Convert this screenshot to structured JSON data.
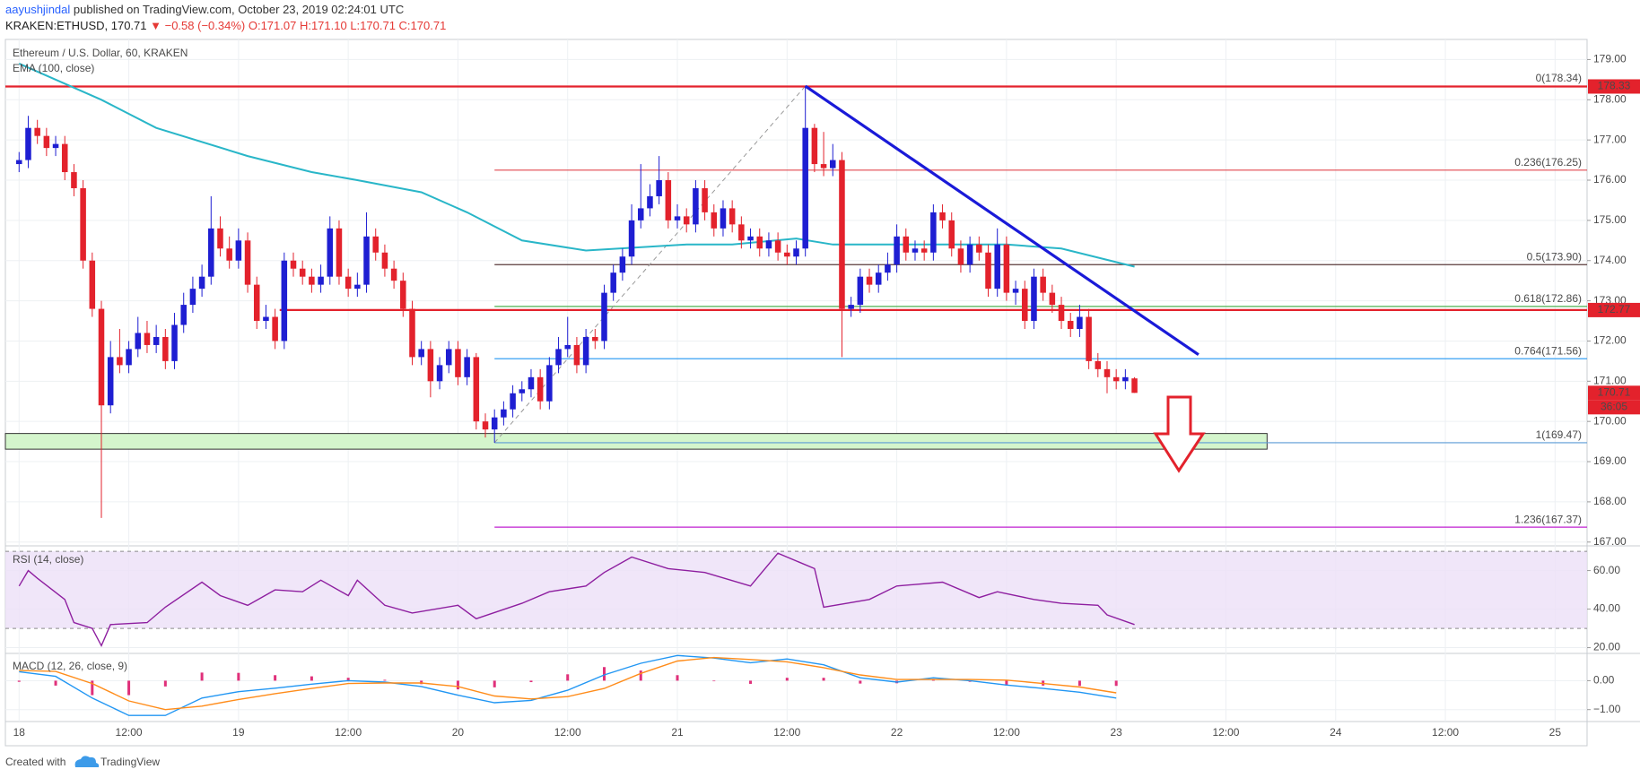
{
  "header": {
    "author": "aayushjindal",
    "published": " published on TradingView.com, October 23, 2019 02:24:01 UTC",
    "symbol": "KRAKEN:ETHUSD, 170.71",
    "change": " ▼ −0.58 (−0.34%)",
    "ohlc": " O:171.07 H:171.10 L:170.71 C:170.71"
  },
  "footer": {
    "prefix": "Created with",
    "brand": "TradingView"
  },
  "chart_data": [
    {
      "type": "candlestick",
      "title": "Ethereum / U.S. Dollar, 60, KRAKEN",
      "up_color": "#1e1ed2",
      "down_color": "#e3222c",
      "grid": true,
      "xlim": [
        -1.5,
        171.5
      ],
      "xticks": [
        {
          "value": 0,
          "label": "18"
        },
        {
          "value": 12,
          "label": "12:00"
        },
        {
          "value": 24,
          "label": "19"
        },
        {
          "value": 36,
          "label": "12:00"
        },
        {
          "value": 48,
          "label": "20"
        },
        {
          "value": 60,
          "label": "12:00"
        },
        {
          "value": 72,
          "label": "21"
        },
        {
          "value": 84,
          "label": "12:00"
        },
        {
          "value": 96,
          "label": "22"
        },
        {
          "value": 108,
          "label": "12:00"
        },
        {
          "value": 120,
          "label": "23"
        },
        {
          "value": 132,
          "label": "12:00"
        },
        {
          "value": 144,
          "label": "24"
        },
        {
          "value": 156,
          "label": "12:00"
        },
        {
          "value": 168,
          "label": "25"
        }
      ],
      "ylim": [
        166.95,
        179.5
      ],
      "yticks": [
        {
          "value": 167,
          "label": "167.00"
        },
        {
          "value": 168,
          "label": "168.00"
        },
        {
          "value": 169,
          "label": "169.00"
        },
        {
          "value": 170,
          "label": "170.00"
        },
        {
          "value": 171,
          "label": "171.00"
        },
        {
          "value": 172,
          "label": "172.00"
        },
        {
          "value": 173,
          "label": "173.00"
        },
        {
          "value": 174,
          "label": "174.00"
        },
        {
          "value": 175,
          "label": "175.00"
        },
        {
          "value": 176,
          "label": "176.00"
        },
        {
          "value": 177,
          "label": "177.00"
        },
        {
          "value": 178,
          "label": "178.00"
        },
        {
          "value": 179,
          "label": "179.00"
        }
      ],
      "x": [
        0,
        1,
        2,
        3,
        4,
        5,
        6,
        7,
        8,
        9,
        10,
        11,
        12,
        13,
        14,
        15,
        16,
        17,
        18,
        19,
        20,
        21,
        22,
        23,
        24,
        25,
        26,
        27,
        28,
        29,
        30,
        31,
        32,
        33,
        34,
        35,
        36,
        37,
        38,
        39,
        40,
        41,
        42,
        43,
        44,
        45,
        46,
        47,
        48,
        49,
        50,
        51,
        52,
        53,
        54,
        55,
        56,
        57,
        58,
        59,
        60,
        61,
        62,
        63,
        64,
        65,
        66,
        67,
        68,
        69,
        70,
        71,
        72,
        73,
        74,
        75,
        76,
        77,
        78,
        79,
        80,
        81,
        82,
        83,
        84,
        85,
        86,
        87,
        88,
        89,
        90,
        91,
        92,
        93,
        94,
        95,
        96,
        97,
        98,
        99,
        100,
        101,
        102,
        103,
        104,
        105,
        106,
        107,
        108,
        109,
        110,
        111,
        112,
        113,
        114,
        115,
        116,
        117,
        118,
        119,
        120,
        121,
        122
      ],
      "open": [
        176.4,
        176.5,
        177.3,
        177.1,
        176.8,
        176.9,
        176.2,
        175.8,
        174.0,
        172.8,
        170.4,
        171.6,
        171.4,
        171.8,
        172.2,
        171.9,
        172.1,
        171.5,
        172.4,
        172.9,
        173.3,
        173.6,
        174.8,
        174.3,
        174.0,
        174.5,
        173.4,
        172.5,
        172.6,
        172.0,
        174.0,
        173.8,
        173.6,
        173.4,
        173.6,
        174.8,
        173.6,
        173.3,
        173.4,
        174.6,
        174.2,
        173.8,
        173.5,
        172.8,
        171.6,
        171.8,
        171.0,
        171.4,
        171.8,
        171.1,
        171.6,
        170.0,
        169.8,
        170.1,
        170.3,
        170.7,
        170.8,
        171.1,
        170.5,
        171.4,
        171.8,
        171.9,
        171.4,
        172.1,
        172.0,
        173.2,
        173.7,
        174.1,
        175.0,
        175.3,
        175.6,
        176.0,
        175.0,
        175.1,
        174.9,
        175.8,
        175.2,
        174.8,
        175.3,
        174.9,
        174.5,
        174.6,
        174.3,
        174.5,
        174.2,
        174.1,
        174.3,
        177.3,
        176.4,
        176.3,
        176.5,
        172.8,
        172.9,
        173.6,
        173.4,
        173.7,
        173.9,
        174.6,
        174.2,
        174.3,
        174.2,
        175.2,
        175.0,
        174.3,
        173.9,
        174.4,
        174.2,
        173.3,
        174.4,
        173.2,
        173.3,
        172.5,
        173.6,
        173.2,
        172.9,
        172.5,
        172.3,
        172.6,
        171.5,
        171.3,
        171.1,
        171.0,
        171.07
      ],
      "high": [
        176.7,
        177.6,
        177.5,
        177.3,
        177.1,
        177.1,
        176.4,
        176.0,
        174.2,
        173.0,
        172.0,
        172.3,
        172.0,
        172.6,
        172.5,
        172.4,
        172.3,
        172.7,
        173.2,
        173.6,
        173.9,
        175.6,
        175.1,
        174.6,
        174.8,
        174.7,
        173.6,
        172.9,
        172.8,
        174.2,
        174.2,
        174.0,
        173.8,
        173.9,
        175.1,
        175.0,
        173.8,
        173.7,
        175.2,
        174.8,
        174.4,
        174.0,
        173.7,
        173.0,
        172.0,
        172.0,
        171.6,
        172.0,
        172.0,
        171.8,
        171.7,
        170.2,
        170.3,
        170.5,
        170.9,
        171.0,
        171.3,
        171.3,
        171.6,
        172.1,
        172.6,
        172.1,
        172.3,
        172.3,
        173.4,
        173.9,
        174.3,
        175.4,
        176.4,
        175.9,
        176.6,
        176.2,
        175.4,
        175.3,
        176.0,
        176.0,
        175.4,
        175.5,
        175.5,
        175.1,
        174.8,
        174.8,
        174.7,
        174.7,
        174.4,
        174.5,
        178.34,
        177.4,
        177.2,
        176.9,
        176.7,
        173.1,
        173.8,
        173.8,
        173.9,
        174.2,
        174.9,
        174.8,
        174.5,
        174.5,
        175.4,
        175.4,
        175.2,
        174.5,
        174.6,
        174.6,
        174.4,
        174.8,
        174.6,
        173.5,
        173.5,
        173.8,
        173.8,
        173.4,
        173.1,
        172.7,
        172.9,
        172.8,
        171.7,
        171.5,
        171.3,
        171.3,
        171.1
      ],
      "low": [
        176.2,
        176.3,
        176.9,
        176.6,
        176.6,
        176.0,
        175.6,
        173.8,
        172.6,
        167.6,
        170.2,
        171.2,
        171.2,
        171.6,
        171.7,
        171.7,
        171.3,
        171.3,
        172.2,
        172.7,
        173.1,
        173.4,
        174.1,
        173.8,
        173.8,
        173.2,
        172.3,
        172.3,
        171.8,
        171.8,
        173.6,
        173.4,
        173.2,
        173.2,
        173.4,
        173.4,
        173.1,
        173.1,
        173.2,
        174.0,
        173.6,
        173.3,
        172.6,
        171.4,
        171.4,
        170.6,
        170.8,
        171.2,
        170.9,
        170.9,
        169.8,
        169.6,
        169.47,
        169.9,
        170.1,
        170.5,
        170.6,
        170.3,
        170.3,
        171.2,
        171.6,
        171.2,
        171.2,
        171.8,
        171.8,
        173.0,
        173.5,
        173.9,
        174.8,
        175.1,
        175.4,
        174.8,
        174.8,
        174.7,
        174.7,
        175.0,
        174.6,
        174.6,
        174.7,
        174.3,
        174.3,
        174.1,
        174.1,
        174.0,
        173.9,
        173.9,
        174.1,
        176.2,
        176.1,
        176.1,
        171.6,
        172.6,
        172.7,
        173.2,
        173.2,
        173.5,
        173.7,
        174.0,
        174.0,
        174.0,
        174.0,
        174.8,
        174.1,
        173.7,
        173.7,
        174.0,
        173.1,
        173.1,
        173.0,
        172.9,
        172.3,
        172.3,
        173.0,
        172.7,
        172.3,
        172.1,
        172.1,
        171.3,
        171.1,
        170.7,
        170.8,
        170.8,
        170.71
      ],
      "close": [
        176.5,
        177.3,
        177.1,
        176.8,
        176.9,
        176.2,
        175.8,
        174.0,
        172.8,
        170.4,
        171.6,
        171.4,
        171.8,
        172.2,
        171.9,
        172.1,
        171.5,
        172.4,
        172.9,
        173.3,
        173.6,
        174.8,
        174.3,
        174.0,
        174.5,
        173.4,
        172.5,
        172.6,
        172.0,
        174.0,
        173.8,
        173.6,
        173.4,
        173.6,
        174.8,
        173.6,
        173.3,
        173.4,
        174.6,
        174.2,
        173.8,
        173.5,
        172.8,
        171.6,
        171.8,
        171.0,
        171.4,
        171.8,
        171.1,
        171.6,
        170.0,
        169.8,
        170.1,
        170.3,
        170.7,
        170.8,
        171.1,
        170.5,
        171.4,
        171.8,
        171.9,
        171.4,
        172.1,
        172.0,
        173.2,
        173.7,
        174.1,
        175.0,
        175.3,
        175.6,
        176.0,
        175.0,
        175.1,
        174.9,
        175.8,
        175.2,
        174.8,
        175.3,
        174.9,
        174.5,
        174.6,
        174.3,
        174.5,
        174.2,
        174.1,
        174.3,
        177.3,
        176.4,
        176.3,
        176.5,
        172.8,
        172.9,
        173.6,
        173.4,
        173.7,
        173.9,
        174.6,
        174.2,
        174.3,
        174.2,
        175.2,
        175.0,
        174.3,
        173.9,
        174.4,
        174.2,
        173.3,
        174.4,
        173.2,
        173.3,
        172.5,
        173.6,
        173.2,
        172.9,
        172.5,
        172.3,
        172.6,
        171.5,
        171.3,
        171.1,
        171.0,
        171.1,
        170.71
      ],
      "series": [
        {
          "name": "EMA (100, close)",
          "color": "#29b6c8",
          "x": [
            0,
            9,
            15,
            25,
            32,
            37,
            44,
            49,
            55,
            62,
            73,
            78,
            85,
            89,
            97,
            108,
            114,
            122
          ],
          "values": [
            178.9,
            178.0,
            177.3,
            176.6,
            176.2,
            176.0,
            175.7,
            175.2,
            174.5,
            174.25,
            174.4,
            174.4,
            174.55,
            174.4,
            174.4,
            174.4,
            174.3,
            173.85
          ]
        }
      ],
      "levels": [
        {
          "value": 178.33,
          "color": "#e3222c",
          "x": [
            -1.5,
            171.5
          ]
        },
        {
          "value": 172.77,
          "color": "#e3222c",
          "x": [
            28.5,
            171.5
          ]
        }
      ],
      "fib": {
        "x": [
          52,
          171.5
        ],
        "anchor": {
          "x": [
            52,
            86
          ],
          "y": [
            169.47,
            178.34
          ]
        },
        "lines": [
          {
            "value": 178.34,
            "label": "0(178.34)",
            "color": "#8a8a8a"
          },
          {
            "value": 176.25,
            "label": "0.236(176.25)",
            "color": "#e0484f"
          },
          {
            "value": 173.9,
            "label": "0.5(173.90)",
            "color": "#5a3a3a"
          },
          {
            "value": 172.86,
            "label": "0.618(172.86)",
            "color": "#4caf50"
          },
          {
            "value": 171.56,
            "label": "0.764(171.56)",
            "color": "#2196f3"
          },
          {
            "value": 169.47,
            "label": "1(169.47)",
            "color": "#5b9bd5"
          },
          {
            "value": 167.37,
            "label": "1.236(167.37)",
            "color": "#c020d0"
          }
        ]
      },
      "zone": {
        "x": [
          -1.5,
          136.5
        ],
        "y": [
          169.31,
          169.7
        ],
        "color": "#d4f5cc"
      },
      "trendline": {
        "x": [
          86,
          129
        ],
        "y": [
          178.34,
          171.66
        ],
        "color": "#1a1ad8"
      },
      "countdown": "36:05"
    },
    {
      "type": "line",
      "title": "RSI (14, close)",
      "color": "#8e1fa0",
      "band": [
        30,
        70
      ],
      "band_color": "#ece0f7",
      "ylim": [
        18.4,
        71.9
      ],
      "yticks": [
        {
          "value": 20,
          "label": "20.00"
        },
        {
          "value": 40,
          "label": "40.00"
        },
        {
          "value": 60,
          "label": "60.00"
        }
      ],
      "x": [
        0,
        1,
        2,
        5,
        6,
        8,
        9,
        10,
        14,
        16,
        20,
        22,
        25,
        28,
        31,
        33,
        36,
        37,
        40,
        43,
        48,
        50,
        55,
        58,
        62,
        64,
        67,
        71,
        75,
        80,
        83,
        87,
        88,
        93,
        96,
        101,
        105,
        107,
        111,
        114,
        118,
        119,
        122
      ],
      "values": [
        52,
        60,
        56,
        45,
        33,
        30,
        21,
        32,
        33,
        41,
        54,
        47,
        42,
        50,
        49,
        55,
        47,
        55,
        42,
        38,
        42,
        35,
        43,
        49,
        52,
        59,
        67,
        61,
        59,
        52,
        69,
        61,
        41,
        45,
        52,
        54,
        46,
        49,
        45,
        43,
        42,
        37,
        32
      ]
    },
    {
      "type": "macd",
      "title": "MACD (12, 26, close, 9)",
      "ylim": [
        -1.35,
        0.88
      ],
      "yticks": [
        {
          "value": 0,
          "label": "0.00"
        },
        {
          "value": -1,
          "label": "−1.00"
        }
      ],
      "x": [
        0,
        4,
        8,
        12,
        16,
        20,
        24,
        28,
        32,
        36,
        40,
        44,
        48,
        52,
        56,
        60,
        64,
        68,
        72,
        76,
        80,
        84,
        88,
        92,
        96,
        100,
        104,
        108,
        112,
        116,
        120
      ],
      "histogram": {
        "color": "#e0307a",
        "values": [
          -0.04,
          -0.17,
          -0.5,
          -0.5,
          -0.2,
          0.28,
          0.27,
          0.19,
          0.15,
          0.1,
          0.03,
          -0.12,
          -0.3,
          -0.23,
          -0.05,
          0.22,
          0.47,
          0.35,
          0.19,
          -0.02,
          -0.11,
          0.1,
          0.1,
          -0.1,
          -0.09,
          0.06,
          -0.04,
          -0.17,
          -0.17,
          -0.18,
          -0.18
        ]
      },
      "lines": [
        {
          "color": "#2196f3",
          "values": [
            0.31,
            0.15,
            -0.6,
            -1.2,
            -1.2,
            -0.6,
            -0.38,
            -0.26,
            -0.12,
            0.0,
            -0.05,
            -0.2,
            -0.5,
            -0.76,
            -0.68,
            -0.33,
            0.2,
            0.6,
            0.87,
            0.78,
            0.62,
            0.75,
            0.55,
            0.1,
            -0.05,
            0.1,
            0.0,
            -0.15,
            -0.27,
            -0.4,
            -0.6
          ]
        },
        {
          "color": "#ff8c1a",
          "values": [
            0.35,
            0.32,
            -0.1,
            -0.7,
            -1.0,
            -0.88,
            -0.65,
            -0.45,
            -0.27,
            -0.1,
            -0.08,
            -0.08,
            -0.2,
            -0.53,
            -0.63,
            -0.55,
            -0.27,
            0.25,
            0.68,
            0.8,
            0.73,
            0.65,
            0.45,
            0.2,
            0.04,
            0.04,
            0.04,
            0.02,
            -0.1,
            -0.22,
            -0.42
          ]
        }
      ]
    }
  ]
}
